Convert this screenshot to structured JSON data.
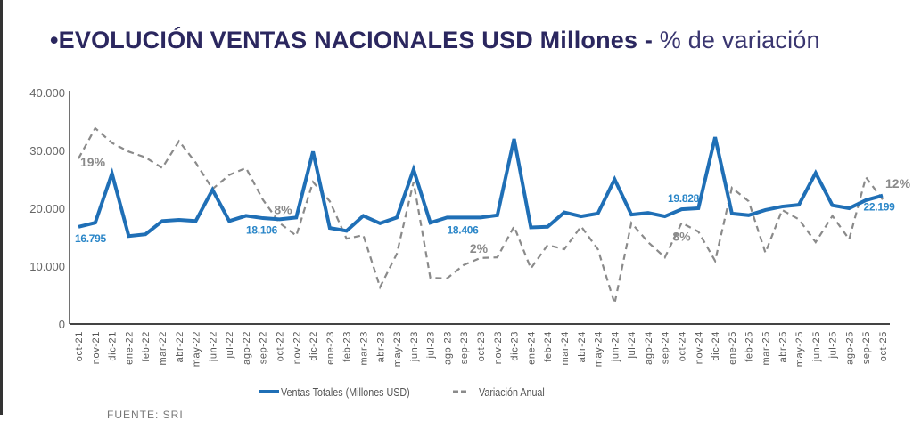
{
  "title": {
    "bullet": "•",
    "bold": "EVOLUCIÓN VENTAS NACIONALES USD Millones -",
    "light": " % de variación"
  },
  "footer": "FUENTE: SRI",
  "chart_data": {
    "type": "line",
    "title": "EVOLUCIÓN VENTAS NACIONALES USD Millones - % de variación",
    "categories": [
      "oct-21",
      "nov-21",
      "dic-21",
      "ene-22",
      "feb-22",
      "mar-22",
      "abr-22",
      "may-22",
      "jun-22",
      "jul-22",
      "ago-22",
      "sep-22",
      "oct-22",
      "nov-22",
      "dic-22",
      "ene-23",
      "feb-23",
      "mar-23",
      "abr-23",
      "may-23",
      "jun-23",
      "jul-23",
      "ago-23",
      "sep-23",
      "oct-23",
      "nov-23",
      "dic-23",
      "ene-24",
      "feb-24",
      "mar-24",
      "abr-24",
      "may-24",
      "jun-24",
      "jul-24",
      "ago-24",
      "sep-24",
      "oct-24",
      "nov-24",
      "dic-24",
      "ene-25",
      "feb-25",
      "mar-25",
      "abr-25",
      "may-25",
      "jun-25",
      "jul-25",
      "ago-25",
      "sep-25",
      "oct-25"
    ],
    "ylim": [
      0,
      40000
    ],
    "yticks": [
      "0",
      "10.000",
      "20.000",
      "30.000",
      "40.000"
    ],
    "ytick_values": [
      0,
      10000,
      20000,
      30000,
      40000
    ],
    "secondary_axis": "hidden",
    "legend_position": "bottom",
    "grid": false,
    "series": [
      {
        "name": "Ventas Totales (Millones USD)",
        "color": "#1f6fb6",
        "style": "solid",
        "values": [
          16795,
          17500,
          26000,
          15200,
          15500,
          17800,
          18000,
          17800,
          23200,
          17800,
          18700,
          18300,
          18106,
          18400,
          29800,
          16600,
          16100,
          18700,
          17400,
          18400,
          26700,
          17500,
          18400,
          18400,
          18406,
          18800,
          32000,
          16700,
          16800,
          19300,
          18600,
          19100,
          25000,
          18900,
          19200,
          18600,
          19828,
          20000,
          32300,
          19100,
          18800,
          19700,
          20300,
          20600,
          26100,
          20500,
          20000,
          21400,
          22199
        ],
        "labels": [
          {
            "index": 0,
            "text": "16.795"
          },
          {
            "index": 12,
            "text": "18.106"
          },
          {
            "index": 24,
            "text": "18.406"
          },
          {
            "index": 36,
            "text": "19.828"
          },
          {
            "index": 48,
            "text": "22.199"
          }
        ]
      },
      {
        "name": "Variación Anual",
        "color": "#8a8a8a",
        "style": "dashed",
        "unit": "%",
        "values": [
          19,
          24.2,
          21.7,
          20.2,
          19.2,
          17.4,
          22,
          18.3,
          13.8,
          16.2,
          17.4,
          12,
          8,
          5.8,
          15,
          11.7,
          5.3,
          5.9,
          -3,
          2.7,
          15,
          -1.4,
          -1.5,
          0.8,
          2,
          2.1,
          7.4,
          0.2,
          4.2,
          3.5,
          7.4,
          3.5,
          -5.8,
          8,
          4.7,
          2.1,
          8,
          6.5,
          1.5,
          14,
          11.7,
          2.9,
          10.2,
          8.6,
          4.7,
          9.2,
          5.2,
          15.8,
          12
        ],
        "labels": [
          {
            "index": 0,
            "text": "19%"
          },
          {
            "index": 12,
            "text": "8%"
          },
          {
            "index": 24,
            "text": "2%"
          },
          {
            "index": 36,
            "text": "8%"
          },
          {
            "index": 48,
            "text": "12%"
          }
        ]
      }
    ]
  }
}
